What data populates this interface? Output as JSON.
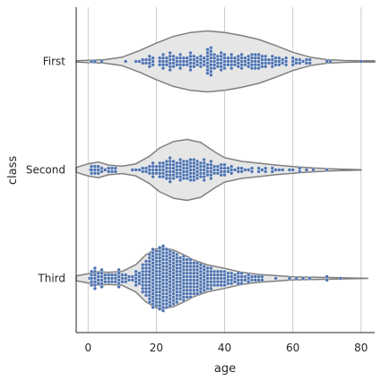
{
  "chart_data": {
    "type": "violin",
    "overlay": "swarm",
    "xlabel": "age",
    "ylabel": "class",
    "xlim": [
      -3.5,
      84
    ],
    "xticks": [
      0,
      20,
      40,
      60,
      80
    ],
    "grid": "vertical",
    "colors": {
      "violin_fill": "#e6e6e6",
      "violin_edge": "#808080",
      "points": "#4c72b0",
      "grid": "#cccccc",
      "text": "#262626"
    },
    "categories": [
      "First",
      "Second",
      "Third"
    ],
    "series": [
      {
        "category": "First",
        "range": [
          -3.5,
          84
        ],
        "density": [
          [
            -3.5,
            0.02
          ],
          [
            0,
            0.035
          ],
          [
            5,
            0.06
          ],
          [
            10,
            0.14
          ],
          [
            15,
            0.35
          ],
          [
            20,
            0.6
          ],
          [
            25,
            0.82
          ],
          [
            30,
            0.95
          ],
          [
            35,
            1.0
          ],
          [
            40,
            0.95
          ],
          [
            45,
            0.85
          ],
          [
            50,
            0.72
          ],
          [
            55,
            0.52
          ],
          [
            60,
            0.3
          ],
          [
            65,
            0.14
          ],
          [
            70,
            0.06
          ],
          [
            75,
            0.03
          ],
          [
            80,
            0.02
          ],
          [
            84,
            0.02
          ]
        ],
        "points": [
          [
            0.92,
            1
          ],
          [
            1,
            1
          ],
          [
            2,
            1
          ],
          [
            4,
            1
          ],
          [
            11,
            1
          ],
          [
            14,
            1
          ],
          [
            15,
            1
          ],
          [
            16,
            2
          ],
          [
            17,
            2
          ],
          [
            18,
            4
          ],
          [
            19,
            3
          ],
          [
            21,
            3
          ],
          [
            22,
            5
          ],
          [
            23,
            3
          ],
          [
            24,
            6
          ],
          [
            25,
            4
          ],
          [
            26,
            3
          ],
          [
            27,
            5
          ],
          [
            28,
            3
          ],
          [
            29,
            3
          ],
          [
            30,
            6
          ],
          [
            31,
            4
          ],
          [
            32,
            3
          ],
          [
            33,
            4
          ],
          [
            34,
            3
          ],
          [
            35,
            8
          ],
          [
            36,
            9
          ],
          [
            37,
            5
          ],
          [
            38,
            4
          ],
          [
            39,
            6
          ],
          [
            40,
            5
          ],
          [
            41,
            3
          ],
          [
            42,
            5
          ],
          [
            43,
            3
          ],
          [
            44,
            4
          ],
          [
            45,
            5
          ],
          [
            46,
            3
          ],
          [
            47,
            4
          ],
          [
            48,
            5
          ],
          [
            49,
            5
          ],
          [
            50,
            5
          ],
          [
            51,
            4
          ],
          [
            52,
            4
          ],
          [
            53,
            2
          ],
          [
            54,
            4
          ],
          [
            55,
            3
          ],
          [
            56,
            3
          ],
          [
            57,
            2
          ],
          [
            58,
            3
          ],
          [
            60,
            3
          ],
          [
            61,
            2
          ],
          [
            62,
            2
          ],
          [
            63,
            1
          ],
          [
            64,
            2
          ],
          [
            65,
            2
          ],
          [
            70,
            1
          ],
          [
            71,
            1
          ],
          [
            80,
            1
          ]
        ]
      },
      {
        "category": "Second",
        "range": [
          -3.5,
          80
        ],
        "density": [
          [
            -3.5,
            0.08
          ],
          [
            0,
            0.2
          ],
          [
            3,
            0.26
          ],
          [
            6,
            0.16
          ],
          [
            10,
            0.12
          ],
          [
            14,
            0.2
          ],
          [
            18,
            0.45
          ],
          [
            21,
            0.72
          ],
          [
            25,
            0.93
          ],
          [
            29,
            1.0
          ],
          [
            33,
            0.9
          ],
          [
            37,
            0.6
          ],
          [
            40,
            0.4
          ],
          [
            45,
            0.28
          ],
          [
            50,
            0.22
          ],
          [
            55,
            0.16
          ],
          [
            60,
            0.11
          ],
          [
            65,
            0.07
          ],
          [
            70,
            0.04
          ],
          [
            75,
            0.02
          ],
          [
            80,
            0.01
          ]
        ],
        "points": [
          [
            0.67,
            1
          ],
          [
            1,
            3
          ],
          [
            2,
            3
          ],
          [
            3,
            3
          ],
          [
            4,
            2
          ],
          [
            5,
            1
          ],
          [
            6,
            2
          ],
          [
            7,
            2
          ],
          [
            8,
            2
          ],
          [
            13,
            1
          ],
          [
            14,
            1
          ],
          [
            15,
            1
          ],
          [
            16,
            2
          ],
          [
            17,
            2
          ],
          [
            18,
            3
          ],
          [
            19,
            5
          ],
          [
            20,
            3
          ],
          [
            21,
            5
          ],
          [
            22,
            5
          ],
          [
            23,
            6
          ],
          [
            24,
            8
          ],
          [
            25,
            6
          ],
          [
            26,
            5
          ],
          [
            27,
            7
          ],
          [
            28,
            6
          ],
          [
            29,
            6
          ],
          [
            30,
            7
          ],
          [
            31,
            7
          ],
          [
            32,
            6
          ],
          [
            33,
            5
          ],
          [
            34,
            7
          ],
          [
            35,
            4
          ],
          [
            36,
            6
          ],
          [
            37,
            3
          ],
          [
            38,
            3
          ],
          [
            39,
            4
          ],
          [
            40,
            4
          ],
          [
            41,
            2
          ],
          [
            42,
            3
          ],
          [
            43,
            1
          ],
          [
            44,
            2
          ],
          [
            45,
            2
          ],
          [
            46,
            1
          ],
          [
            47,
            1
          ],
          [
            48,
            2
          ],
          [
            50,
            2
          ],
          [
            51,
            1
          ],
          [
            52,
            2
          ],
          [
            54,
            2
          ],
          [
            55,
            1
          ],
          [
            56,
            1
          ],
          [
            57,
            1
          ],
          [
            59,
            1
          ],
          [
            60,
            1
          ],
          [
            62,
            2
          ],
          [
            64,
            1
          ],
          [
            66,
            1
          ],
          [
            70,
            1
          ]
        ]
      },
      {
        "category": "Third",
        "range": [
          -3.5,
          82
        ],
        "density": [
          [
            -3.5,
            0.08
          ],
          [
            0,
            0.15
          ],
          [
            3,
            0.22
          ],
          [
            6,
            0.2
          ],
          [
            10,
            0.23
          ],
          [
            14,
            0.45
          ],
          [
            17,
            0.78
          ],
          [
            20,
            0.97
          ],
          [
            22,
            1.0
          ],
          [
            25,
            0.93
          ],
          [
            28,
            0.78
          ],
          [
            31,
            0.6
          ],
          [
            35,
            0.44
          ],
          [
            40,
            0.33
          ],
          [
            45,
            0.2
          ],
          [
            50,
            0.13
          ],
          [
            55,
            0.09
          ],
          [
            60,
            0.05
          ],
          [
            65,
            0.04
          ],
          [
            70,
            0.03
          ],
          [
            74,
            0.02
          ],
          [
            80,
            0.01
          ],
          [
            82,
            0.0
          ]
        ],
        "points": [
          [
            0.42,
            1
          ],
          [
            1,
            5
          ],
          [
            2,
            7
          ],
          [
            3,
            4
          ],
          [
            4,
            6
          ],
          [
            5,
            3
          ],
          [
            6,
            3
          ],
          [
            7,
            3
          ],
          [
            8,
            3
          ],
          [
            9,
            6
          ],
          [
            10,
            3
          ],
          [
            11,
            3
          ],
          [
            12,
            2
          ],
          [
            13,
            2
          ],
          [
            14,
            5
          ],
          [
            15,
            4
          ],
          [
            16,
            9
          ],
          [
            17,
            11
          ],
          [
            18,
            15
          ],
          [
            19,
            18
          ],
          [
            20,
            17
          ],
          [
            21,
            19
          ],
          [
            22,
            20
          ],
          [
            23,
            18
          ],
          [
            24,
            17
          ],
          [
            25,
            16
          ],
          [
            26,
            15
          ],
          [
            27,
            13
          ],
          [
            28,
            14
          ],
          [
            29,
            12
          ],
          [
            30,
            12
          ],
          [
            31,
            10
          ],
          [
            32,
            10
          ],
          [
            33,
            9
          ],
          [
            34,
            8
          ],
          [
            35,
            7
          ],
          [
            36,
            7
          ],
          [
            37,
            5
          ],
          [
            38,
            5
          ],
          [
            39,
            5
          ],
          [
            40,
            5
          ],
          [
            41,
            4
          ],
          [
            42,
            4
          ],
          [
            43,
            3
          ],
          [
            44,
            4
          ],
          [
            45,
            4
          ],
          [
            46,
            2
          ],
          [
            47,
            3
          ],
          [
            48,
            2
          ],
          [
            49,
            2
          ],
          [
            50,
            2
          ],
          [
            51,
            2
          ],
          [
            55,
            1
          ],
          [
            59,
            1
          ],
          [
            61,
            1
          ],
          [
            63,
            1
          ],
          [
            65,
            1
          ],
          [
            70,
            2
          ],
          [
            74,
            1
          ]
        ]
      }
    ]
  }
}
